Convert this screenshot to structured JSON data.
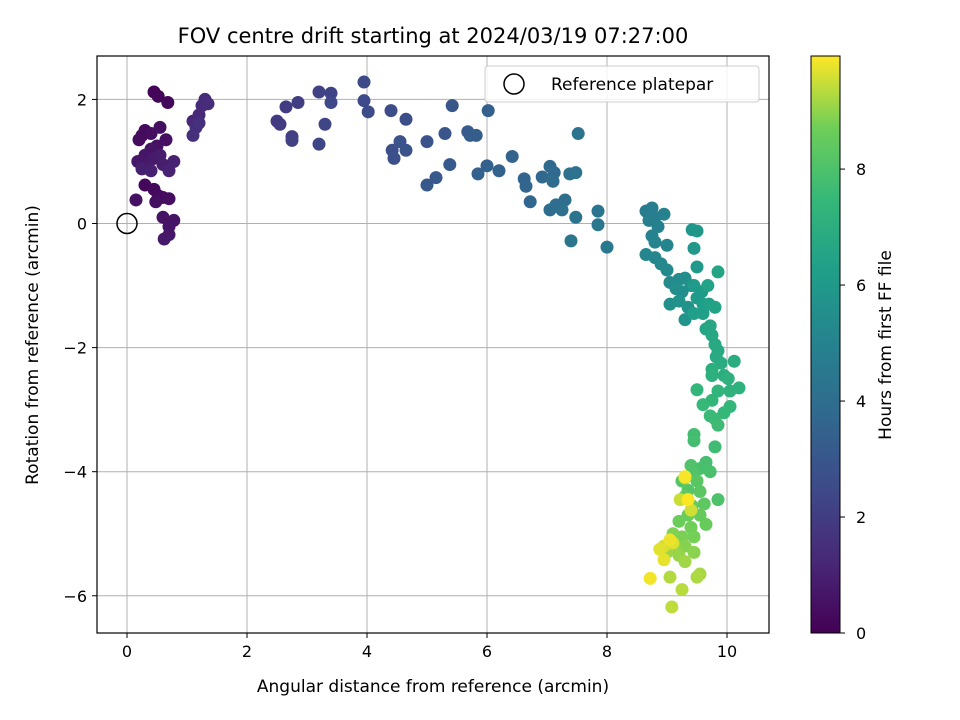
{
  "chart_data": {
    "type": "scatter",
    "title": "FOV centre drift starting at 2024/03/19 07:27:00",
    "xlabel": "Angular distance from reference (arcmin)",
    "ylabel": "Rotation from reference (arcmin)",
    "xlim": [
      -0.5,
      10.7
    ],
    "ylim": [
      -6.6,
      2.7
    ],
    "x_ticks": [
      0,
      2,
      4,
      6,
      8,
      10
    ],
    "x_tick_labels": [
      "0",
      "2",
      "4",
      "6",
      "8",
      "10"
    ],
    "y_ticks": [
      2,
      0,
      -2,
      -4,
      -6
    ],
    "y_tick_labels": [
      "2",
      "0",
      "−2",
      "−4",
      "−6"
    ],
    "grid": true,
    "legend": {
      "placement": "top-right",
      "entries": [
        "Reference platepar"
      ]
    },
    "colorbar": {
      "label": "Hours from first FF file",
      "colormap": "viridis",
      "range": [
        0,
        9.95
      ],
      "ticks": [
        0,
        2,
        4,
        6,
        8
      ],
      "tick_labels": [
        "0",
        "2",
        "4",
        "6",
        "8"
      ]
    },
    "reference_point": {
      "name": "Reference platepar",
      "x": 0,
      "y": 0
    },
    "series": [
      {
        "color_by": "hours_from_first_ff_file",
        "points": [
          [
            0.45,
            2.12,
            0.1
          ],
          [
            0.52,
            2.05,
            0.15
          ],
          [
            0.68,
            1.95,
            0.2
          ],
          [
            0.25,
            1.42,
            0.25
          ],
          [
            0.3,
            1.5,
            0.3
          ],
          [
            0.2,
            1.35,
            0.35
          ],
          [
            0.4,
            1.45,
            0.4
          ],
          [
            0.55,
            1.55,
            0.45
          ],
          [
            0.65,
            1.35,
            0.5
          ],
          [
            0.5,
            1.25,
            0.55
          ],
          [
            0.4,
            1.2,
            0.6
          ],
          [
            0.3,
            1.1,
            0.65
          ],
          [
            0.18,
            1.0,
            0.7
          ],
          [
            0.35,
            0.95,
            0.75
          ],
          [
            0.45,
            1.05,
            0.8
          ],
          [
            0.55,
            1.1,
            0.85
          ],
          [
            0.6,
            0.95,
            0.9
          ],
          [
            0.25,
            0.88,
            0.95
          ],
          [
            0.4,
            0.85,
            1.0
          ],
          [
            0.78,
            1.0,
            1.05
          ],
          [
            0.7,
            0.85,
            1.1
          ],
          [
            0.3,
            0.62,
            0.2
          ],
          [
            0.45,
            0.55,
            0.25
          ],
          [
            0.52,
            0.45,
            0.3
          ],
          [
            0.6,
            0.42,
            0.35
          ],
          [
            0.7,
            0.4,
            0.4
          ],
          [
            0.48,
            0.35,
            0.45
          ],
          [
            0.15,
            0.38,
            0.5
          ],
          [
            0.6,
            0.1,
            0.55
          ],
          [
            0.78,
            0.05,
            0.6
          ],
          [
            0.7,
            -0.05,
            0.65
          ],
          [
            0.7,
            -0.18,
            0.7
          ],
          [
            0.62,
            -0.25,
            0.75
          ],
          [
            1.1,
            1.65,
            1.2
          ],
          [
            1.2,
            1.75,
            1.25
          ],
          [
            1.25,
            1.9,
            1.3
          ],
          [
            1.3,
            2.0,
            1.35
          ],
          [
            1.35,
            1.93,
            1.4
          ],
          [
            1.15,
            1.55,
            1.45
          ],
          [
            1.2,
            1.62,
            1.5
          ],
          [
            1.1,
            1.42,
            1.55
          ],
          [
            2.5,
            1.65,
            1.9
          ],
          [
            2.55,
            1.6,
            1.95
          ],
          [
            2.65,
            1.88,
            2.0
          ],
          [
            2.85,
            1.95,
            2.05
          ],
          [
            2.75,
            1.4,
            2.1
          ],
          [
            2.75,
            1.34,
            2.15
          ],
          [
            3.2,
            2.12,
            2.2
          ],
          [
            3.4,
            2.1,
            2.25
          ],
          [
            3.3,
            1.6,
            2.3
          ],
          [
            3.2,
            1.28,
            2.35
          ],
          [
            3.4,
            1.95,
            2.4
          ],
          [
            3.95,
            2.28,
            2.45
          ],
          [
            3.95,
            1.98,
            2.5
          ],
          [
            4.02,
            1.8,
            2.55
          ],
          [
            4.4,
            1.82,
            2.6
          ],
          [
            4.65,
            1.68,
            2.65
          ],
          [
            4.42,
            1.18,
            2.7
          ],
          [
            4.45,
            1.05,
            2.75
          ],
          [
            4.55,
            1.32,
            2.8
          ],
          [
            4.65,
            1.18,
            2.85
          ],
          [
            5.0,
            1.32,
            2.9
          ],
          [
            5.3,
            1.45,
            2.95
          ],
          [
            5.42,
            1.9,
            3.0
          ],
          [
            5.0,
            0.62,
            3.05
          ],
          [
            5.15,
            0.74,
            3.1
          ],
          [
            5.38,
            0.95,
            3.15
          ],
          [
            5.68,
            1.48,
            3.2
          ],
          [
            5.72,
            1.42,
            3.25
          ],
          [
            5.82,
            1.42,
            3.3
          ],
          [
            6.02,
            1.82,
            3.35
          ],
          [
            6.0,
            0.93,
            3.4
          ],
          [
            5.85,
            0.8,
            3.45
          ],
          [
            6.2,
            0.85,
            3.5
          ],
          [
            6.42,
            1.08,
            3.55
          ],
          [
            6.62,
            0.72,
            3.6
          ],
          [
            6.65,
            0.6,
            3.65
          ],
          [
            6.72,
            0.35,
            3.7
          ],
          [
            6.92,
            0.75,
            3.75
          ],
          [
            7.05,
            0.92,
            3.8
          ],
          [
            7.12,
            0.82,
            3.85
          ],
          [
            7.1,
            0.68,
            3.9
          ],
          [
            7.05,
            0.22,
            3.95
          ],
          [
            7.15,
            0.3,
            4.0
          ],
          [
            7.3,
            0.38,
            4.05
          ],
          [
            7.25,
            0.22,
            4.1
          ],
          [
            7.38,
            0.8,
            4.15
          ],
          [
            7.48,
            0.82,
            4.2
          ],
          [
            7.52,
            1.45,
            4.25
          ],
          [
            7.48,
            0.1,
            4.3
          ],
          [
            7.4,
            -0.28,
            4.35
          ],
          [
            7.85,
            0.2,
            4.4
          ],
          [
            7.85,
            -0.02,
            4.45
          ],
          [
            8.0,
            -0.38,
            4.5
          ],
          [
            8.65,
            0.2,
            4.7
          ],
          [
            8.75,
            0.25,
            4.75
          ],
          [
            8.8,
            0.1,
            4.8
          ],
          [
            8.7,
            0.05,
            4.85
          ],
          [
            8.95,
            0.15,
            4.9
          ],
          [
            8.85,
            -0.05,
            4.95
          ],
          [
            8.75,
            -0.2,
            5.0
          ],
          [
            8.8,
            -0.3,
            5.05
          ],
          [
            9.0,
            -0.35,
            5.1
          ],
          [
            8.65,
            -0.5,
            5.15
          ],
          [
            8.8,
            -0.55,
            5.2
          ],
          [
            8.9,
            -0.65,
            5.25
          ],
          [
            9.0,
            -0.75,
            5.3
          ],
          [
            9.05,
            -0.95,
            5.35
          ],
          [
            9.2,
            -0.9,
            5.4
          ],
          [
            9.3,
            -0.88,
            5.45
          ],
          [
            9.15,
            -1.05,
            5.5
          ],
          [
            9.25,
            -1.1,
            5.55
          ],
          [
            9.4,
            -1.0,
            5.6
          ],
          [
            9.05,
            -1.3,
            5.65
          ],
          [
            9.2,
            -1.25,
            5.7
          ],
          [
            9.35,
            -1.35,
            5.75
          ],
          [
            9.3,
            -1.55,
            5.8
          ],
          [
            9.42,
            -0.1,
            5.85
          ],
          [
            9.5,
            -0.12,
            5.9
          ],
          [
            9.45,
            -0.4,
            5.95
          ],
          [
            9.5,
            -0.7,
            6.0
          ],
          [
            9.45,
            -1.0,
            6.05
          ],
          [
            9.5,
            -1.2,
            6.1
          ],
          [
            9.58,
            -1.1,
            6.15
          ],
          [
            9.6,
            -1.3,
            6.2
          ],
          [
            9.45,
            -1.45,
            6.25
          ],
          [
            9.6,
            -1.45,
            6.3
          ],
          [
            9.7,
            -1.3,
            6.35
          ],
          [
            9.68,
            -1.0,
            6.4
          ],
          [
            9.8,
            -1.35,
            6.45
          ],
          [
            9.85,
            -0.78,
            6.5
          ],
          [
            9.65,
            -1.7,
            6.55
          ],
          [
            9.72,
            -1.65,
            6.6
          ],
          [
            9.75,
            -1.8,
            6.65
          ],
          [
            9.8,
            -1.95,
            6.7
          ],
          [
            9.85,
            -2.05,
            6.75
          ],
          [
            9.82,
            -2.15,
            6.8
          ],
          [
            9.9,
            -2.25,
            6.85
          ],
          [
            10.12,
            -2.22,
            6.9
          ],
          [
            9.95,
            -2.45,
            6.95
          ],
          [
            9.75,
            -2.35,
            7.0
          ],
          [
            9.75,
            -2.45,
            7.05
          ],
          [
            10.02,
            -2.5,
            7.1
          ],
          [
            10.2,
            -2.65,
            7.15
          ],
          [
            10.05,
            -2.7,
            7.2
          ],
          [
            9.85,
            -2.7,
            7.25
          ],
          [
            9.5,
            -2.68,
            7.3
          ],
          [
            9.75,
            -2.85,
            7.35
          ],
          [
            10.05,
            -2.95,
            7.4
          ],
          [
            9.95,
            -3.05,
            7.45
          ],
          [
            9.6,
            -2.92,
            7.5
          ],
          [
            9.72,
            -3.1,
            7.55
          ],
          [
            9.8,
            -3.15,
            7.6
          ],
          [
            9.85,
            -3.25,
            7.65
          ],
          [
            9.8,
            -3.6,
            7.7
          ],
          [
            9.45,
            -3.4,
            7.75
          ],
          [
            9.45,
            -3.5,
            7.8
          ],
          [
            9.65,
            -3.85,
            7.85
          ],
          [
            9.55,
            -3.95,
            7.9
          ],
          [
            9.72,
            -4.0,
            7.95
          ],
          [
            9.85,
            -4.45,
            8.0
          ],
          [
            9.4,
            -3.9,
            8.05
          ],
          [
            9.45,
            -4.05,
            8.1
          ],
          [
            9.25,
            -4.15,
            8.15
          ],
          [
            9.35,
            -4.3,
            8.2
          ],
          [
            9.5,
            -4.15,
            8.25
          ],
          [
            9.55,
            -4.32,
            8.3
          ],
          [
            9.62,
            -4.52,
            8.35
          ],
          [
            9.3,
            -4.4,
            8.4
          ],
          [
            9.42,
            -4.55,
            8.45
          ],
          [
            9.55,
            -4.7,
            8.5
          ],
          [
            9.65,
            -4.85,
            8.55
          ],
          [
            9.35,
            -4.7,
            8.6
          ],
          [
            9.2,
            -4.8,
            8.65
          ],
          [
            9.4,
            -4.9,
            8.7
          ],
          [
            9.45,
            -5.05,
            8.75
          ],
          [
            9.25,
            -5.05,
            8.8
          ],
          [
            9.1,
            -5.0,
            8.85
          ],
          [
            9.3,
            -5.2,
            8.9
          ],
          [
            9.45,
            -5.3,
            8.95
          ],
          [
            9.15,
            -5.25,
            9.0
          ],
          [
            9.2,
            -5.35,
            9.05
          ],
          [
            9.0,
            -5.3,
            9.1
          ],
          [
            9.3,
            -5.45,
            9.15
          ],
          [
            9.55,
            -5.65,
            9.2
          ],
          [
            9.5,
            -5.7,
            9.25
          ],
          [
            9.05,
            -5.7,
            9.3
          ],
          [
            9.25,
            -5.9,
            9.35
          ],
          [
            9.08,
            -6.18,
            9.4
          ],
          [
            9.3,
            -4.1,
            9.45
          ],
          [
            9.22,
            -4.45,
            9.5
          ],
          [
            9.4,
            -4.62,
            9.55
          ],
          [
            8.95,
            -5.2,
            9.6
          ],
          [
            9.1,
            -5.15,
            9.65
          ],
          [
            8.88,
            -5.25,
            9.7
          ],
          [
            8.95,
            -5.42,
            9.75
          ],
          [
            9.05,
            -5.1,
            9.8
          ],
          [
            8.72,
            -5.72,
            9.85
          ],
          [
            9.3,
            -4.08,
            9.9
          ],
          [
            9.35,
            -4.45,
            9.95
          ]
        ]
      }
    ]
  }
}
